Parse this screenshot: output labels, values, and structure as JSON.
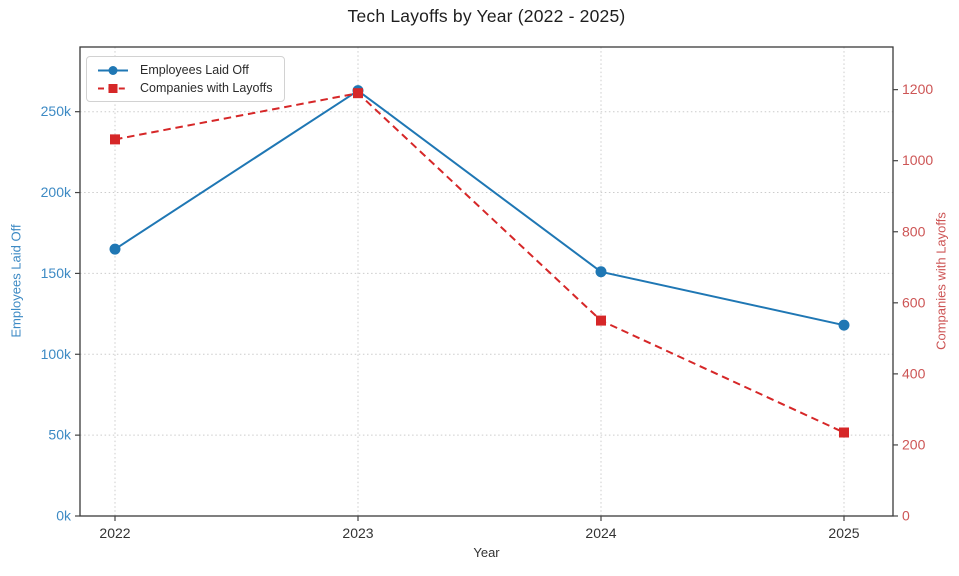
{
  "chart_data": {
    "type": "line",
    "title": "Tech Layoffs by Year (2022 - 2025)",
    "xlabel": "Year",
    "categories": [
      "2022",
      "2023",
      "2024",
      "2025"
    ],
    "series": [
      {
        "name": "Employees Laid Off",
        "axis": "left",
        "values": [
          165000,
          263000,
          151000,
          118000
        ],
        "color": "#1f77b4",
        "style": "solid",
        "marker": "circle"
      },
      {
        "name": "Companies with Layoffs",
        "axis": "right",
        "values": [
          1060,
          1190,
          550,
          235
        ],
        "color": "#d62728",
        "style": "dashed",
        "marker": "square"
      }
    ],
    "axes": {
      "left": {
        "label": "Employees Laid Off",
        "color": "#3d8ac4",
        "ylim": [
          0,
          290000
        ],
        "ticks": [
          0,
          50000,
          100000,
          150000,
          200000,
          250000
        ],
        "tick_labels": [
          "0k",
          "50k",
          "100k",
          "150k",
          "200k",
          "250k"
        ]
      },
      "right": {
        "label": "Companies with Layoffs",
        "color": "#cd5555",
        "ylim": [
          0,
          1320
        ],
        "ticks": [
          0,
          200,
          400,
          600,
          800,
          1000,
          1200
        ],
        "tick_labels": [
          "0",
          "200",
          "400",
          "600",
          "800",
          "1000",
          "1200"
        ]
      }
    },
    "grid": true,
    "legend_position": "upper-left",
    "tick_label_color_x": "#333333"
  }
}
